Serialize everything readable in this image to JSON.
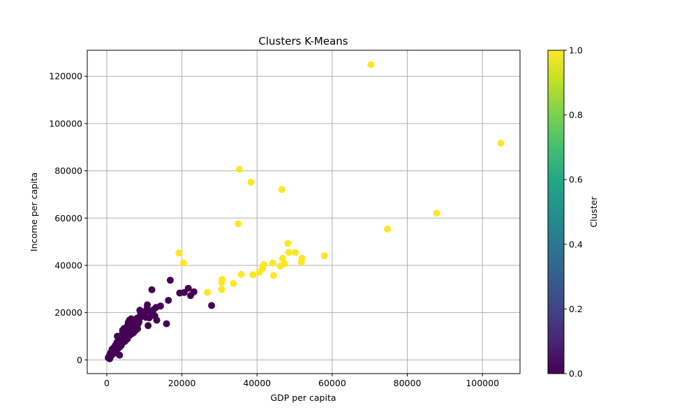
{
  "chart_data": {
    "type": "scatter",
    "title": "Clusters K-Means",
    "xlabel": "GDP per capita",
    "ylabel": "Income per capita",
    "xlim": [
      -5200,
      110000
    ],
    "ylim": [
      -5800,
      131000
    ],
    "x_ticks": [
      "0",
      "20000",
      "40000",
      "60000",
      "80000",
      "100000"
    ],
    "y_ticks": [
      "0",
      "20000",
      "40000",
      "60000",
      "80000",
      "100000",
      "120000"
    ],
    "grid": true,
    "colorbar": {
      "label": "Cluster",
      "range": [
        0.0,
        1.0
      ],
      "ticks": [
        "0.0",
        "0.2",
        "0.4",
        "0.6",
        "0.8",
        "1.0"
      ],
      "colormap": "viridis"
    },
    "colors": {
      "cluster_0": "#440154",
      "cluster_1": "#fde725",
      "grid": "#b0b0b0",
      "axis": "#000000"
    },
    "series": [
      {
        "cluster": 0,
        "points": [
          [
            400,
            900
          ],
          [
            600,
            1500
          ],
          [
            800,
            500
          ],
          [
            900,
            2200
          ],
          [
            1000,
            3000
          ],
          [
            1200,
            1800
          ],
          [
            1400,
            4500
          ],
          [
            1500,
            2600
          ],
          [
            1700,
            3800
          ],
          [
            1800,
            5000
          ],
          [
            2000,
            2800
          ],
          [
            2100,
            4200
          ],
          [
            2300,
            6200
          ],
          [
            2500,
            3500
          ],
          [
            2600,
            5600
          ],
          [
            2700,
            7400
          ],
          [
            2800,
            10000
          ],
          [
            3000,
            4800
          ],
          [
            3100,
            6800
          ],
          [
            3200,
            8600
          ],
          [
            3400,
            2000
          ],
          [
            3500,
            5500
          ],
          [
            3600,
            7800
          ],
          [
            3700,
            9500
          ],
          [
            3900,
            6200
          ],
          [
            4000,
            8400
          ],
          [
            4100,
            10800
          ],
          [
            4200,
            12500
          ],
          [
            4400,
            9000
          ],
          [
            4500,
            11400
          ],
          [
            4600,
            13300
          ],
          [
            4800,
            7800
          ],
          [
            4900,
            10200
          ],
          [
            5000,
            12800
          ],
          [
            5100,
            9400
          ],
          [
            5300,
            11800
          ],
          [
            5400,
            14100
          ],
          [
            5500,
            8900
          ],
          [
            5600,
            13500
          ],
          [
            5700,
            15800
          ],
          [
            5800,
            11200
          ],
          [
            6000,
            16800
          ],
          [
            6100,
            10400
          ],
          [
            6200,
            13900
          ],
          [
            6300,
            12300
          ],
          [
            6400,
            15000
          ],
          [
            6500,
            17400
          ],
          [
            6600,
            11000
          ],
          [
            6800,
            14200
          ],
          [
            6900,
            12800
          ],
          [
            7000,
            15600
          ],
          [
            7100,
            11500
          ],
          [
            7300,
            13300
          ],
          [
            7400,
            16300
          ],
          [
            7600,
            12400
          ],
          [
            7800,
            14700
          ],
          [
            8000,
            17600
          ],
          [
            8200,
            13200
          ],
          [
            8400,
            15400
          ],
          [
            8600,
            16200
          ],
          [
            8800,
            21000
          ],
          [
            9000,
            19400
          ],
          [
            9300,
            18400
          ],
          [
            9600,
            20200
          ],
          [
            10000,
            19800
          ],
          [
            10400,
            18000
          ],
          [
            10700,
            21800
          ],
          [
            10800,
            23300
          ],
          [
            11000,
            14500
          ],
          [
            11300,
            17800
          ],
          [
            11600,
            20400
          ],
          [
            12000,
            29700
          ],
          [
            12100,
            19600
          ],
          [
            12400,
            21200
          ],
          [
            12800,
            18600
          ],
          [
            13100,
            22200
          ],
          [
            13300,
            16800
          ],
          [
            14300,
            22800
          ],
          [
            15900,
            15300
          ],
          [
            16400,
            25200
          ],
          [
            16900,
            33700
          ],
          [
            19400,
            28300
          ],
          [
            20600,
            28500
          ],
          [
            21700,
            30300
          ],
          [
            22300,
            27200
          ],
          [
            23200,
            28800
          ],
          [
            27900,
            23000
          ]
        ]
      },
      {
        "cluster": 1,
        "points": [
          [
            19200,
            45200
          ],
          [
            20400,
            41000
          ],
          [
            26800,
            28600
          ],
          [
            30600,
            29800
          ],
          [
            30600,
            32700
          ],
          [
            30700,
            34000
          ],
          [
            33700,
            32300
          ],
          [
            35000,
            57600
          ],
          [
            35300,
            80600
          ],
          [
            35800,
            36200
          ],
          [
            38400,
            75200
          ],
          [
            38900,
            36000
          ],
          [
            40600,
            37100
          ],
          [
            41500,
            38700
          ],
          [
            41800,
            40400
          ],
          [
            44200,
            41000
          ],
          [
            44400,
            35800
          ],
          [
            46200,
            39700
          ],
          [
            46600,
            72100
          ],
          [
            46800,
            43000
          ],
          [
            47300,
            40700
          ],
          [
            48200,
            49300
          ],
          [
            48500,
            45500
          ],
          [
            50200,
            45500
          ],
          [
            51800,
            41400
          ],
          [
            52000,
            43000
          ],
          [
            57900,
            44100
          ],
          [
            70300,
            124900
          ],
          [
            74700,
            55400
          ],
          [
            87800,
            62100
          ],
          [
            104900,
            91700
          ]
        ]
      }
    ]
  }
}
